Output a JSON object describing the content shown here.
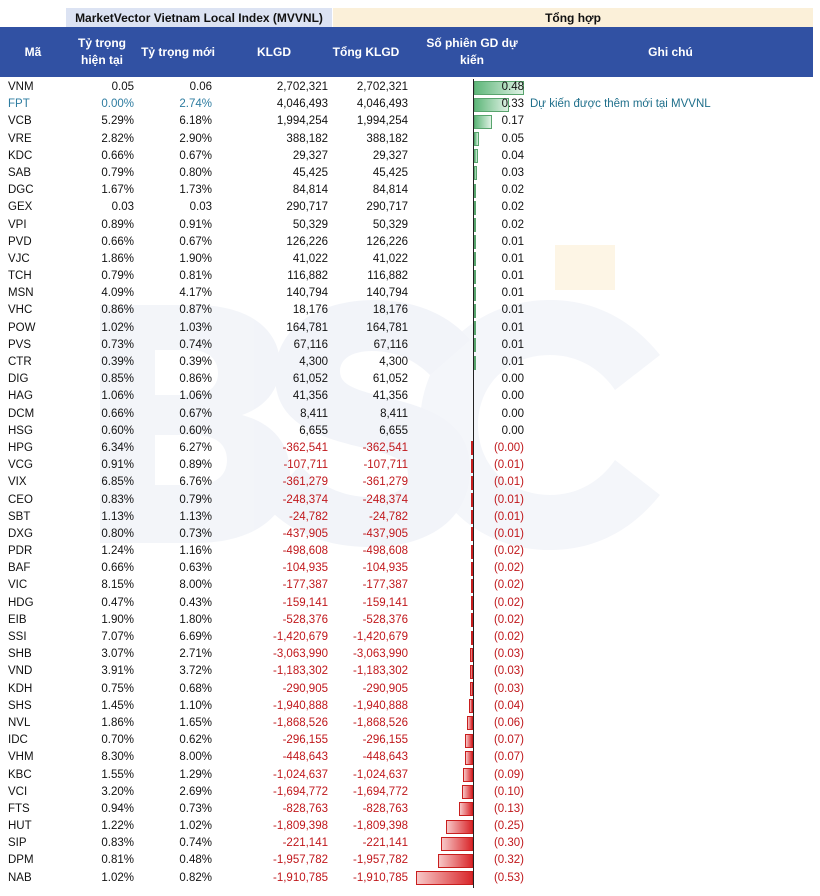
{
  "header": {
    "band_left": "MarketVector Vietnam Local Index (MVVNL)",
    "band_right": "Tổng hợp",
    "col_ma": "Mã",
    "col_cur": "Tỷ trọng hiện tại",
    "col_new": "Tỷ trọng mới",
    "col_klgd": "KLGD",
    "col_total": "Tổng KLGD",
    "col_sessions": "Số phiên GD dự kiến",
    "col_note": "Ghi chú"
  },
  "colors": {
    "header_bg": "#3151a3",
    "positive": "#5fb77a",
    "negative": "#d9272b"
  },
  "rows": [
    {
      "ma": "VNM",
      "cur": "0.05",
      "new": "0.06",
      "klgd": "2,702,321",
      "total": "2,702,321",
      "sessions": "0.48",
      "v": 0.48,
      "note": ""
    },
    {
      "ma": "FPT",
      "cur": "0.00%",
      "new": "2.74%",
      "klgd": "4,046,493",
      "total": "4,046,493",
      "sessions": "0.33",
      "v": 0.33,
      "note": "Dự kiến được thêm mới tại MVVNL"
    },
    {
      "ma": "VCB",
      "cur": "5.29%",
      "new": "6.18%",
      "klgd": "1,994,254",
      "total": "1,994,254",
      "sessions": "0.17",
      "v": 0.17,
      "note": ""
    },
    {
      "ma": "VRE",
      "cur": "2.82%",
      "new": "2.90%",
      "klgd": "388,182",
      "total": "388,182",
      "sessions": "0.05",
      "v": 0.05,
      "note": ""
    },
    {
      "ma": "KDC",
      "cur": "0.66%",
      "new": "0.67%",
      "klgd": "29,327",
      "total": "29,327",
      "sessions": "0.04",
      "v": 0.04,
      "note": ""
    },
    {
      "ma": "SAB",
      "cur": "0.79%",
      "new": "0.80%",
      "klgd": "45,425",
      "total": "45,425",
      "sessions": "0.03",
      "v": 0.03,
      "note": ""
    },
    {
      "ma": "DGC",
      "cur": "1.67%",
      "new": "1.73%",
      "klgd": "84,814",
      "total": "84,814",
      "sessions": "0.02",
      "v": 0.02,
      "note": ""
    },
    {
      "ma": "GEX",
      "cur": "0.03",
      "new": "0.03",
      "klgd": "290,717",
      "total": "290,717",
      "sessions": "0.02",
      "v": 0.02,
      "note": ""
    },
    {
      "ma": "VPI",
      "cur": "0.89%",
      "new": "0.91%",
      "klgd": "50,329",
      "total": "50,329",
      "sessions": "0.02",
      "v": 0.02,
      "note": ""
    },
    {
      "ma": "PVD",
      "cur": "0.66%",
      "new": "0.67%",
      "klgd": "126,226",
      "total": "126,226",
      "sessions": "0.01",
      "v": 0.01,
      "note": ""
    },
    {
      "ma": "VJC",
      "cur": "1.86%",
      "new": "1.90%",
      "klgd": "41,022",
      "total": "41,022",
      "sessions": "0.01",
      "v": 0.01,
      "note": ""
    },
    {
      "ma": "TCH",
      "cur": "0.79%",
      "new": "0.81%",
      "klgd": "116,882",
      "total": "116,882",
      "sessions": "0.01",
      "v": 0.01,
      "note": ""
    },
    {
      "ma": "MSN",
      "cur": "4.09%",
      "new": "4.17%",
      "klgd": "140,794",
      "total": "140,794",
      "sessions": "0.01",
      "v": 0.01,
      "note": ""
    },
    {
      "ma": "VHC",
      "cur": "0.86%",
      "new": "0.87%",
      "klgd": "18,176",
      "total": "18,176",
      "sessions": "0.01",
      "v": 0.01,
      "note": ""
    },
    {
      "ma": "POW",
      "cur": "1.02%",
      "new": "1.03%",
      "klgd": "164,781",
      "total": "164,781",
      "sessions": "0.01",
      "v": 0.01,
      "note": ""
    },
    {
      "ma": "PVS",
      "cur": "0.73%",
      "new": "0.74%",
      "klgd": "67,116",
      "total": "67,116",
      "sessions": "0.01",
      "v": 0.01,
      "note": ""
    },
    {
      "ma": "CTR",
      "cur": "0.39%",
      "new": "0.39%",
      "klgd": "4,300",
      "total": "4,300",
      "sessions": "0.01",
      "v": 0.01,
      "note": ""
    },
    {
      "ma": "DIG",
      "cur": "0.85%",
      "new": "0.86%",
      "klgd": "61,052",
      "total": "61,052",
      "sessions": "0.00",
      "v": 0.0,
      "note": ""
    },
    {
      "ma": "HAG",
      "cur": "1.06%",
      "new": "1.06%",
      "klgd": "41,356",
      "total": "41,356",
      "sessions": "0.00",
      "v": 0.0,
      "note": ""
    },
    {
      "ma": "DCM",
      "cur": "0.66%",
      "new": "0.67%",
      "klgd": "8,411",
      "total": "8,411",
      "sessions": "0.00",
      "v": 0.0,
      "note": ""
    },
    {
      "ma": "HSG",
      "cur": "0.60%",
      "new": "0.60%",
      "klgd": "6,655",
      "total": "6,655",
      "sessions": "0.00",
      "v": 0.0,
      "note": ""
    },
    {
      "ma": "HPG",
      "cur": "6.34%",
      "new": "6.27%",
      "klgd": "-362,541",
      "total": "-362,541",
      "sessions": "(0.00)",
      "v": -0.004,
      "note": ""
    },
    {
      "ma": "VCG",
      "cur": "0.91%",
      "new": "0.89%",
      "klgd": "-107,711",
      "total": "-107,711",
      "sessions": "(0.01)",
      "v": -0.01,
      "note": ""
    },
    {
      "ma": "VIX",
      "cur": "6.85%",
      "new": "6.76%",
      "klgd": "-361,279",
      "total": "-361,279",
      "sessions": "(0.01)",
      "v": -0.01,
      "note": ""
    },
    {
      "ma": "CEO",
      "cur": "0.83%",
      "new": "0.79%",
      "klgd": "-248,374",
      "total": "-248,374",
      "sessions": "(0.01)",
      "v": -0.01,
      "note": ""
    },
    {
      "ma": "SBT",
      "cur": "1.13%",
      "new": "1.13%",
      "klgd": "-24,782",
      "total": "-24,782",
      "sessions": "(0.01)",
      "v": -0.01,
      "note": ""
    },
    {
      "ma": "DXG",
      "cur": "0.80%",
      "new": "0.73%",
      "klgd": "-437,905",
      "total": "-437,905",
      "sessions": "(0.01)",
      "v": -0.01,
      "note": ""
    },
    {
      "ma": "PDR",
      "cur": "1.24%",
      "new": "1.16%",
      "klgd": "-498,608",
      "total": "-498,608",
      "sessions": "(0.02)",
      "v": -0.02,
      "note": ""
    },
    {
      "ma": "BAF",
      "cur": "0.66%",
      "new": "0.63%",
      "klgd": "-104,935",
      "total": "-104,935",
      "sessions": "(0.02)",
      "v": -0.02,
      "note": ""
    },
    {
      "ma": "VIC",
      "cur": "8.15%",
      "new": "8.00%",
      "klgd": "-177,387",
      "total": "-177,387",
      "sessions": "(0.02)",
      "v": -0.02,
      "note": ""
    },
    {
      "ma": "HDG",
      "cur": "0.47%",
      "new": "0.43%",
      "klgd": "-159,141",
      "total": "-159,141",
      "sessions": "(0.02)",
      "v": -0.02,
      "note": ""
    },
    {
      "ma": "EIB",
      "cur": "1.90%",
      "new": "1.80%",
      "klgd": "-528,376",
      "total": "-528,376",
      "sessions": "(0.02)",
      "v": -0.02,
      "note": ""
    },
    {
      "ma": "SSI",
      "cur": "7.07%",
      "new": "6.69%",
      "klgd": "-1,420,679",
      "total": "-1,420,679",
      "sessions": "(0.02)",
      "v": -0.02,
      "note": ""
    },
    {
      "ma": "SHB",
      "cur": "3.07%",
      "new": "2.71%",
      "klgd": "-3,063,990",
      "total": "-3,063,990",
      "sessions": "(0.03)",
      "v": -0.03,
      "note": ""
    },
    {
      "ma": "VND",
      "cur": "3.91%",
      "new": "3.72%",
      "klgd": "-1,183,302",
      "total": "-1,183,302",
      "sessions": "(0.03)",
      "v": -0.03,
      "note": ""
    },
    {
      "ma": "KDH",
      "cur": "0.75%",
      "new": "0.68%",
      "klgd": "-290,905",
      "total": "-290,905",
      "sessions": "(0.03)",
      "v": -0.03,
      "note": ""
    },
    {
      "ma": "SHS",
      "cur": "1.45%",
      "new": "1.10%",
      "klgd": "-1,940,888",
      "total": "-1,940,888",
      "sessions": "(0.04)",
      "v": -0.04,
      "note": ""
    },
    {
      "ma": "NVL",
      "cur": "1.86%",
      "new": "1.65%",
      "klgd": "-1,868,526",
      "total": "-1,868,526",
      "sessions": "(0.06)",
      "v": -0.06,
      "note": ""
    },
    {
      "ma": "IDC",
      "cur": "0.70%",
      "new": "0.62%",
      "klgd": "-296,155",
      "total": "-296,155",
      "sessions": "(0.07)",
      "v": -0.07,
      "note": ""
    },
    {
      "ma": "VHM",
      "cur": "8.30%",
      "new": "8.00%",
      "klgd": "-448,643",
      "total": "-448,643",
      "sessions": "(0.07)",
      "v": -0.07,
      "note": ""
    },
    {
      "ma": "KBC",
      "cur": "1.55%",
      "new": "1.29%",
      "klgd": "-1,024,637",
      "total": "-1,024,637",
      "sessions": "(0.09)",
      "v": -0.09,
      "note": ""
    },
    {
      "ma": "VCI",
      "cur": "3.20%",
      "new": "2.69%",
      "klgd": "-1,694,772",
      "total": "-1,694,772",
      "sessions": "(0.10)",
      "v": -0.1,
      "note": ""
    },
    {
      "ma": "FTS",
      "cur": "0.94%",
      "new": "0.73%",
      "klgd": "-828,763",
      "total": "-828,763",
      "sessions": "(0.13)",
      "v": -0.13,
      "note": ""
    },
    {
      "ma": "HUT",
      "cur": "1.22%",
      "new": "1.02%",
      "klgd": "-1,809,398",
      "total": "-1,809,398",
      "sessions": "(0.25)",
      "v": -0.25,
      "note": ""
    },
    {
      "ma": "SIP",
      "cur": "0.83%",
      "new": "0.74%",
      "klgd": "-221,141",
      "total": "-221,141",
      "sessions": "(0.30)",
      "v": -0.3,
      "note": ""
    },
    {
      "ma": "DPM",
      "cur": "0.81%",
      "new": "0.48%",
      "klgd": "-1,957,782",
      "total": "-1,957,782",
      "sessions": "(0.32)",
      "v": -0.32,
      "note": ""
    },
    {
      "ma": "NAB",
      "cur": "1.02%",
      "new": "0.82%",
      "klgd": "-1,910,785",
      "total": "-1,910,785",
      "sessions": "(0.53)",
      "v": -0.53,
      "note": ""
    }
  ]
}
